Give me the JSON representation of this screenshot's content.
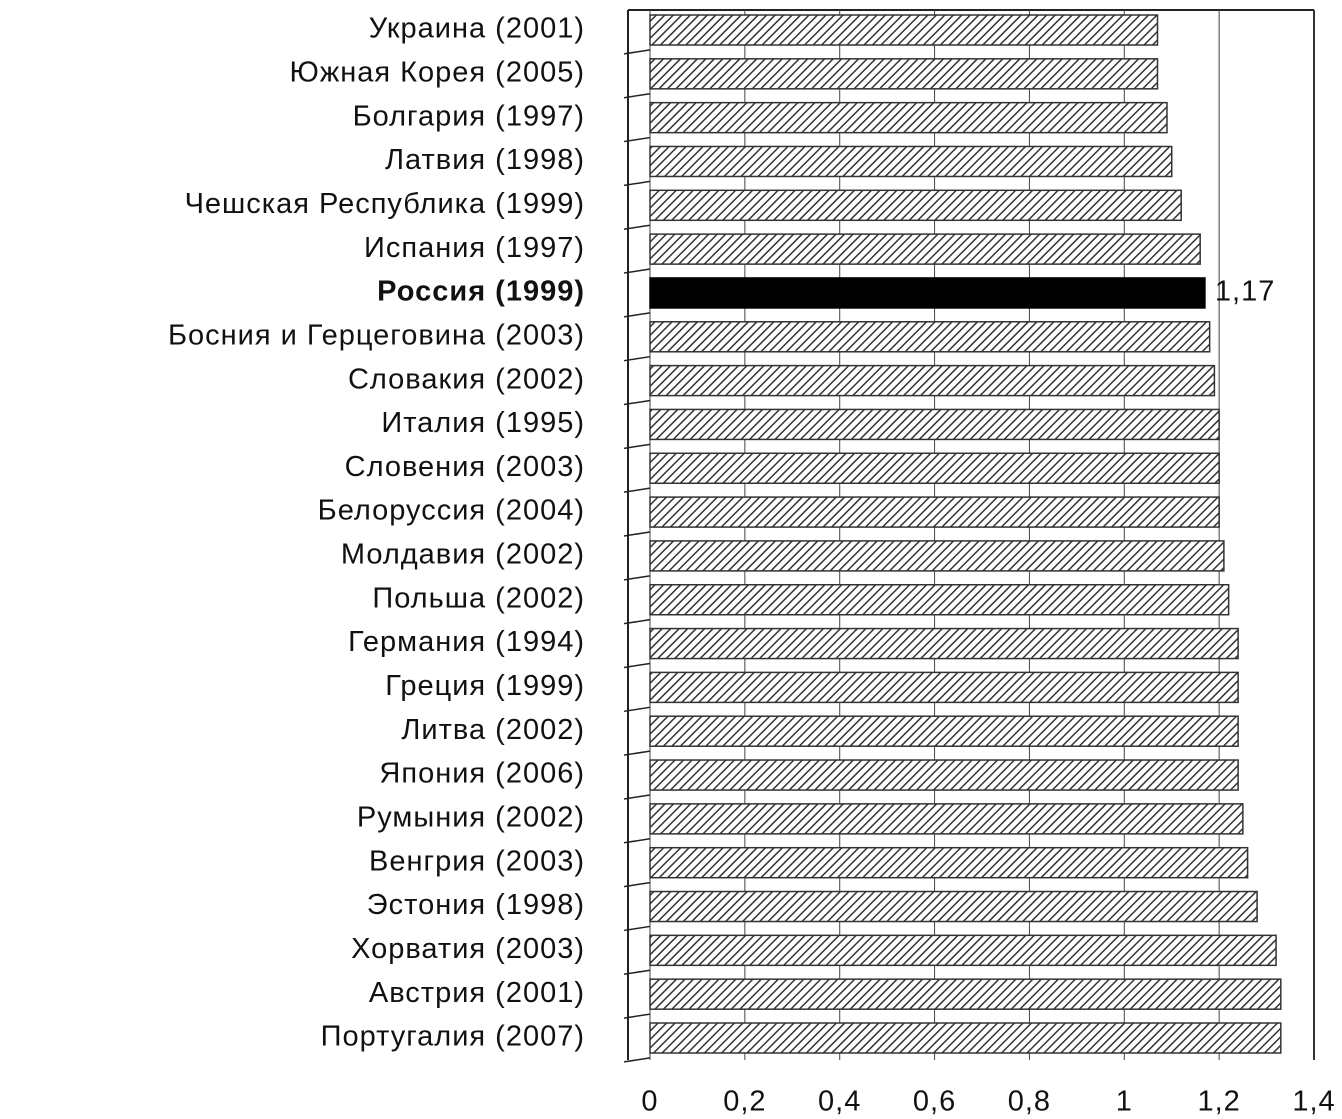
{
  "chart_data": {
    "type": "barh",
    "categories": [
      "Украина (2001)",
      "Южная Корея (2005)",
      "Болгария (1997)",
      "Латвия (1998)",
      "Чешская Республика (1999)",
      "Испания (1997)",
      "Россия (1999)",
      "Босния и Герцеговина (2003)",
      "Словакия (2002)",
      "Италия (1995)",
      "Словения (2003)",
      "Белоруссия (2004)",
      "Молдавия (2002)",
      "Польша (2002)",
      "Германия (1994)",
      "Греция (1999)",
      "Литва (2002)",
      "Япония (2006)",
      "Румыния (2002)",
      "Венгрия (2003)",
      "Эстония (1998)",
      "Хорватия (2003)",
      "Австрия (2001)",
      "Португалия (2007)"
    ],
    "values": [
      1.07,
      1.07,
      1.09,
      1.1,
      1.12,
      1.16,
      1.17,
      1.18,
      1.19,
      1.2,
      1.2,
      1.2,
      1.21,
      1.22,
      1.24,
      1.24,
      1.24,
      1.24,
      1.25,
      1.26,
      1.28,
      1.32,
      1.33,
      1.33
    ],
    "value_labels": [
      null,
      null,
      null,
      null,
      null,
      null,
      "1,17",
      null,
      null,
      null,
      null,
      null,
      null,
      null,
      null,
      null,
      null,
      null,
      null,
      null,
      null,
      null,
      null,
      null
    ],
    "hatched": [
      true,
      true,
      true,
      true,
      true,
      true,
      false,
      true,
      true,
      true,
      true,
      true,
      true,
      true,
      true,
      true,
      true,
      true,
      true,
      true,
      true,
      true,
      true,
      true
    ],
    "color": "#333333",
    "highlight_color": "#000000",
    "xlim": [
      0,
      1.4
    ],
    "xticks": [
      0,
      {
        "value": 0.2,
        "label": "0,2"
      },
      {
        "value": 0.4,
        "label": "0,4"
      },
      {
        "value": 0.6,
        "label": "0,6"
      },
      {
        "value": 0.8,
        "label": "0,8"
      },
      1,
      {
        "value": 1.2,
        "label": "1,2"
      },
      {
        "value": 1.4,
        "label": "1,4"
      }
    ],
    "grid": true
  }
}
